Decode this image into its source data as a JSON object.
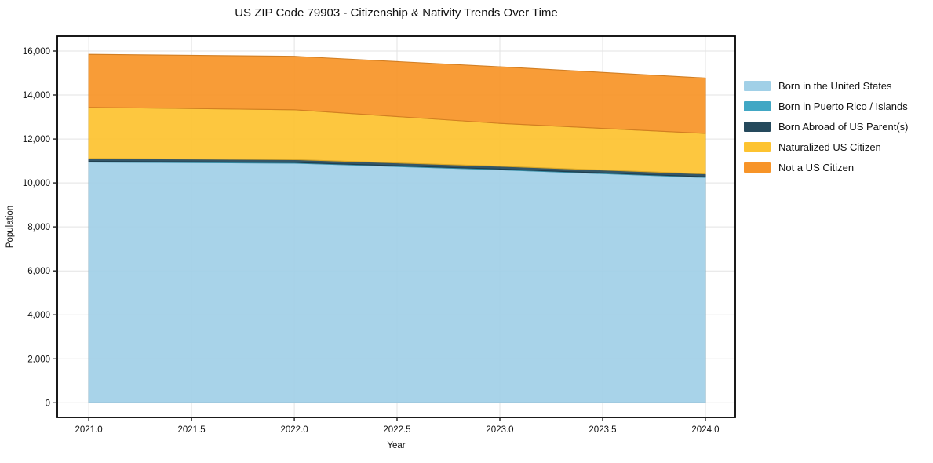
{
  "chart_data": {
    "type": "area",
    "title": "US ZIP Code 79903 - Citizenship & Nativity Trends Over Time",
    "xlabel": "Year",
    "ylabel": "Population",
    "x": [
      2021,
      2022,
      2023,
      2024
    ],
    "series": [
      {
        "name": "Born in the United States",
        "color": "#a1d0e7",
        "values": [
          10950,
          10900,
          10600,
          10250
        ]
      },
      {
        "name": "Born in Puerto Rico / Islands",
        "color": "#41a7c4",
        "values": [
          30,
          30,
          30,
          30
        ]
      },
      {
        "name": "Born Abroad of US Parent(s)",
        "color": "#25495c",
        "values": [
          130,
          130,
          130,
          130
        ]
      },
      {
        "name": "Naturalized US Citizen",
        "color": "#fdc330",
        "values": [
          2330,
          2270,
          1950,
          1840
        ]
      },
      {
        "name": "Not a US Citizen",
        "color": "#f79428",
        "values": [
          2410,
          2430,
          2570,
          2520
        ]
      }
    ],
    "xticks": {
      "values": [
        2021.0,
        2021.5,
        2022.0,
        2022.5,
        2023.0,
        2023.5,
        2024.0
      ],
      "labels": [
        "2021.0",
        "2021.5",
        "2022.0",
        "2022.5",
        "2023.0",
        "2023.5",
        "2024.0"
      ]
    },
    "yticks": {
      "values": [
        0,
        2000,
        4000,
        6000,
        8000,
        10000,
        12000,
        14000,
        16000
      ],
      "labels": [
        "0",
        "2,000",
        "4,000",
        "6,000",
        "8,000",
        "10,000",
        "12,000",
        "14,000",
        "16,000"
      ]
    },
    "xlim": [
      2020.847,
      2024.145
    ],
    "ylim": [
      -667,
      16677
    ],
    "grid": true,
    "legend_position": "right",
    "fill_opacity": 0.93
  }
}
